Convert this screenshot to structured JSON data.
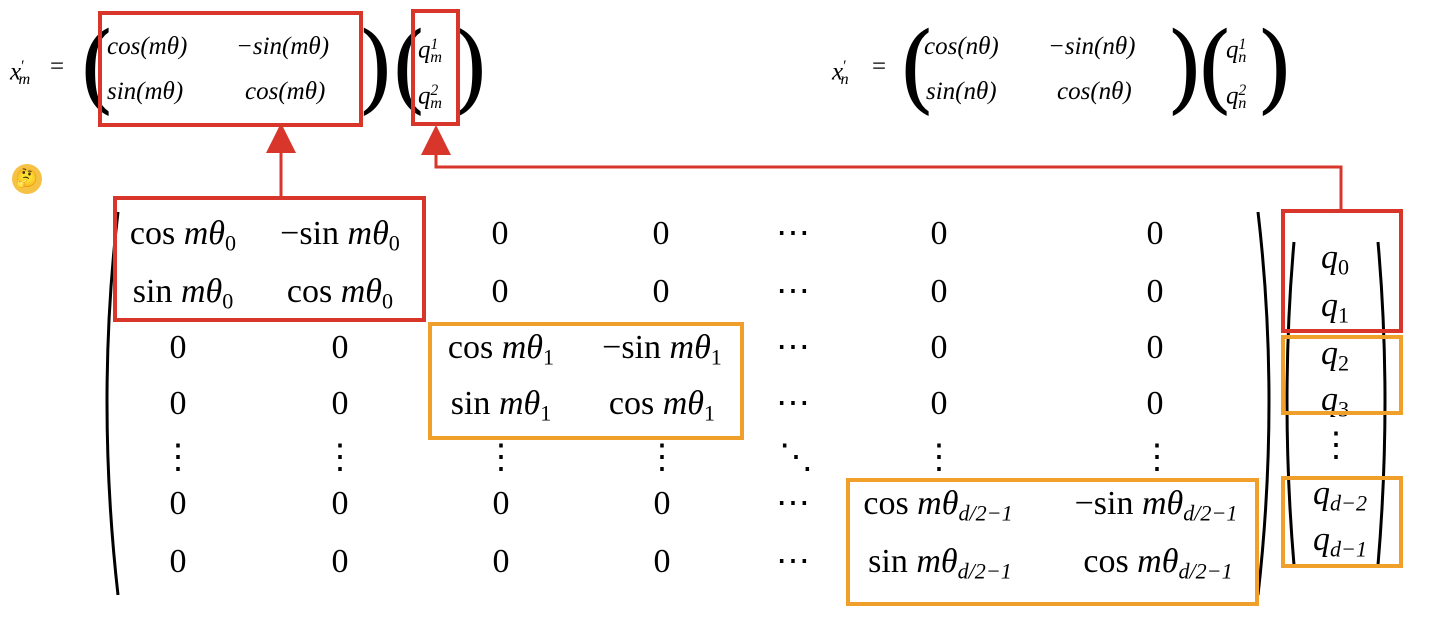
{
  "top_left": {
    "lhs": "x",
    "lhs_prime": "′",
    "lhs_sub": "m",
    "equals": "=",
    "m11": "cos(mθ)",
    "m12": "−sin(mθ)",
    "m21": "sin(mθ)",
    "m22": "cos(mθ)",
    "v1": "q",
    "v1_sub": "m",
    "v1_sup": "1",
    "v2": "q",
    "v2_sub": "m",
    "v2_sup": "2"
  },
  "top_right": {
    "lhs": "x",
    "lhs_prime": "′",
    "lhs_sub": "n",
    "equals": "=",
    "m11": "cos(nθ)",
    "m12": "−sin(nθ)",
    "m21": "sin(nθ)",
    "m22": "cos(nθ)",
    "v1": "q",
    "v1_sub": "n",
    "v1_sup": "1",
    "v2": "q",
    "v2_sub": "n",
    "v2_sup": "2"
  },
  "emoji": "🤔",
  "big_matrix": {
    "zero": "0",
    "hdots": "⋯",
    "vdots": "⋮",
    "ddots": "⋱",
    "cos": "cos",
    "sin": "sin",
    "neg": "−",
    "m_theta": "mθ",
    "sub0": "0",
    "sub1": "1",
    "subd": "d/2−1"
  },
  "vector": {
    "q": "q",
    "subs": [
      "0",
      "1",
      "2",
      "3",
      "d−2",
      "d−1"
    ],
    "vdots": "⋮"
  },
  "colors": {
    "red": "#d9362b",
    "orange": "#f0a02a"
  }
}
